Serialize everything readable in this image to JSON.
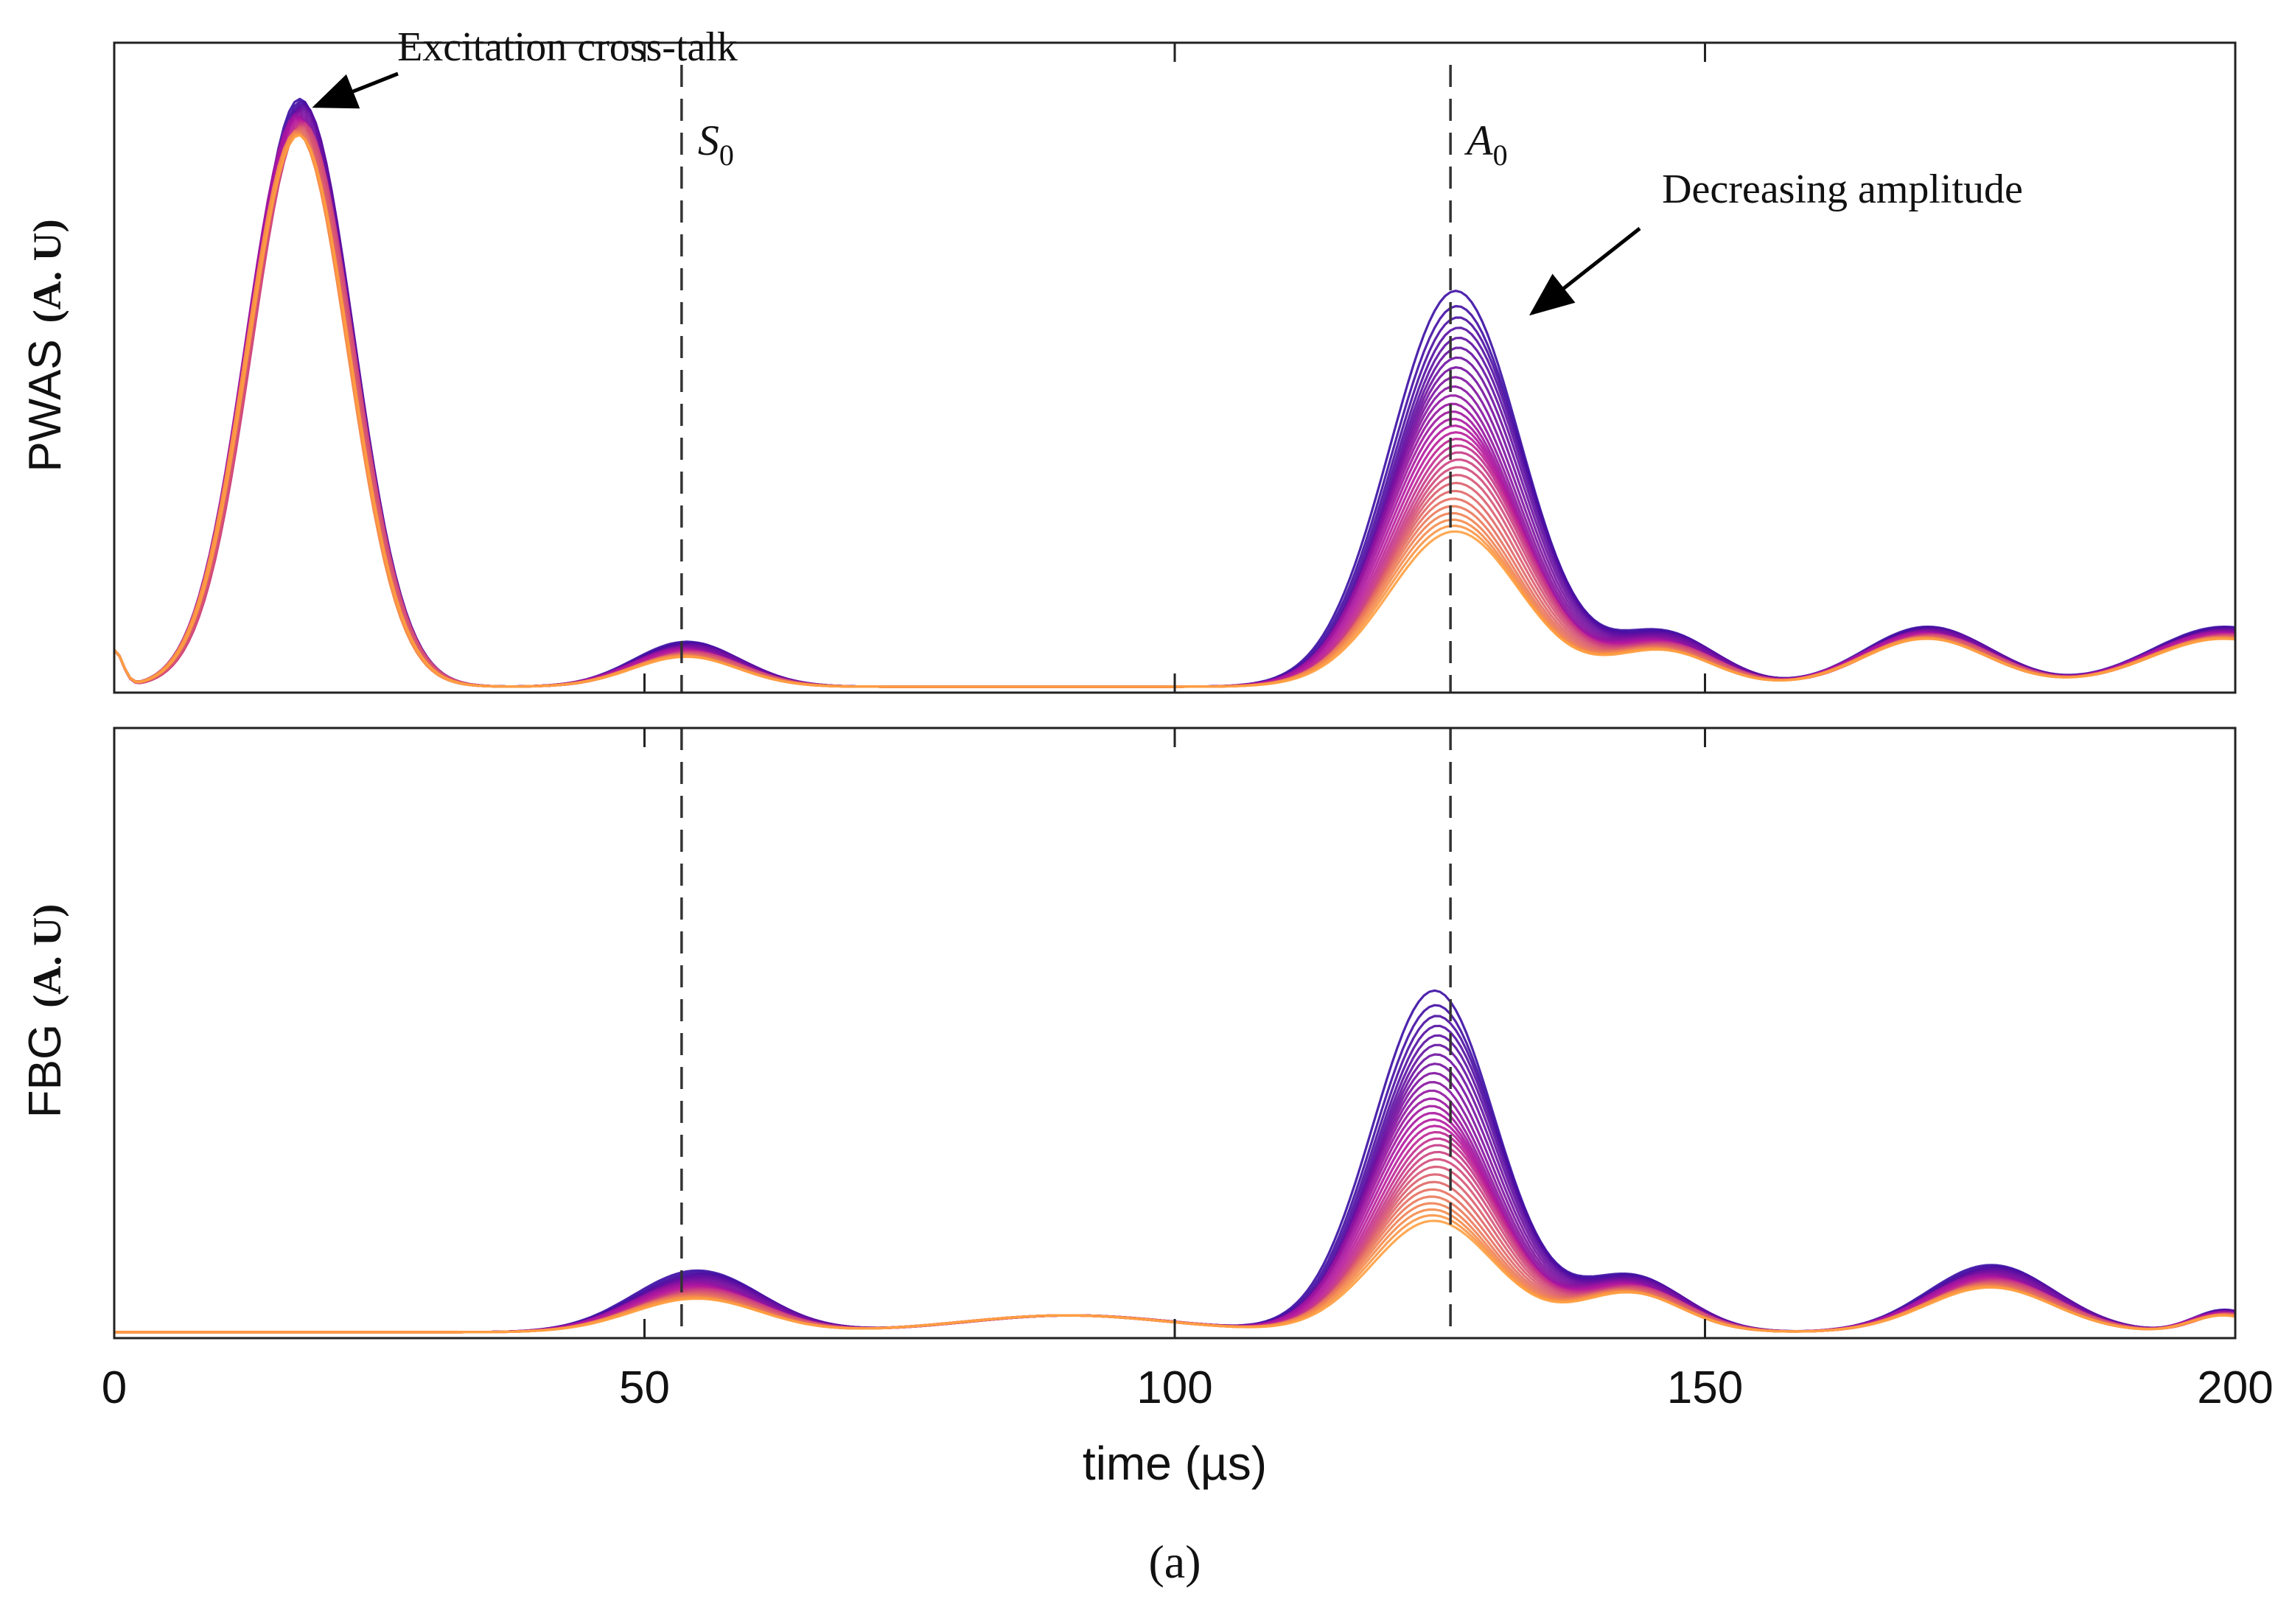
{
  "figure_label": "(a)",
  "chart_data": {
    "type": "line",
    "xlabel": "time (µs)",
    "xlim": [
      0,
      200
    ],
    "x_ticks": [
      0,
      50,
      100,
      150,
      200
    ],
    "x_tick_labels": [
      "0",
      "50",
      "100",
      "150",
      "200"
    ],
    "mode_markers": [
      {
        "name": "S0",
        "label_main": "S",
        "label_sub": "0",
        "x": 53.5
      },
      {
        "name": "A0",
        "label_main": "A",
        "label_sub": "0",
        "x": 126
      }
    ],
    "n_traces": 30,
    "color_start": "#3a0ca3",
    "color_mid": "#b5179e",
    "color_end": "#ff9e40",
    "panels": [
      {
        "name": "PWAS",
        "ylabel_main": "PWAS",
        "ylabel_unit": "(A. U)",
        "ylim": [
          0,
          1
        ],
        "annotations": [
          {
            "name": "excitation",
            "text": "Excitation cross-talk",
            "x": 18,
            "y": 0.98
          },
          {
            "name": "decreasing",
            "text": "Decreasing amplitude",
            "x": 133,
            "y": 0.63
          }
        ],
        "features": [
          {
            "name": "crosstalk",
            "center": 17.5,
            "width": 4.8,
            "amp_max": 0.98,
            "amp_min": 0.92
          },
          {
            "name": "s0",
            "center": 54,
            "width": 5,
            "amp_max": 0.075,
            "amp_min": 0.05
          },
          {
            "name": "a0",
            "center": 126.5,
            "width": 6.2,
            "amp_max": 0.66,
            "amp_min": 0.26
          },
          {
            "name": "r1",
            "center": 146,
            "width": 5,
            "amp_max": 0.09,
            "amp_min": 0.06
          },
          {
            "name": "r2",
            "center": 171,
            "width": 6,
            "amp_max": 0.1,
            "amp_min": 0.08
          },
          {
            "name": "r3",
            "center": 199,
            "width": 7,
            "amp_max": 0.1,
            "amp_min": 0.08
          }
        ]
      },
      {
        "name": "FBG",
        "ylabel_main": "FBG",
        "ylabel_unit": "(A. U)",
        "ylim": [
          0,
          1
        ],
        "annotations": [],
        "features": [
          {
            "name": "s0",
            "center": 55,
            "width": 6,
            "amp_max": 0.11,
            "amp_min": 0.06
          },
          {
            "name": "mid",
            "center": 90,
            "width": 10,
            "amp_max": 0.03,
            "amp_min": 0.03
          },
          {
            "name": "a0",
            "center": 124.5,
            "width": 5.8,
            "amp_max": 0.61,
            "amp_min": 0.2
          },
          {
            "name": "r1",
            "center": 143,
            "width": 5,
            "amp_max": 0.1,
            "amp_min": 0.07
          },
          {
            "name": "r2",
            "center": 177,
            "width": 6,
            "amp_max": 0.12,
            "amp_min": 0.08
          },
          {
            "name": "r3",
            "center": 199,
            "width": 3,
            "amp_max": 0.04,
            "amp_min": 0.03
          }
        ]
      }
    ]
  }
}
